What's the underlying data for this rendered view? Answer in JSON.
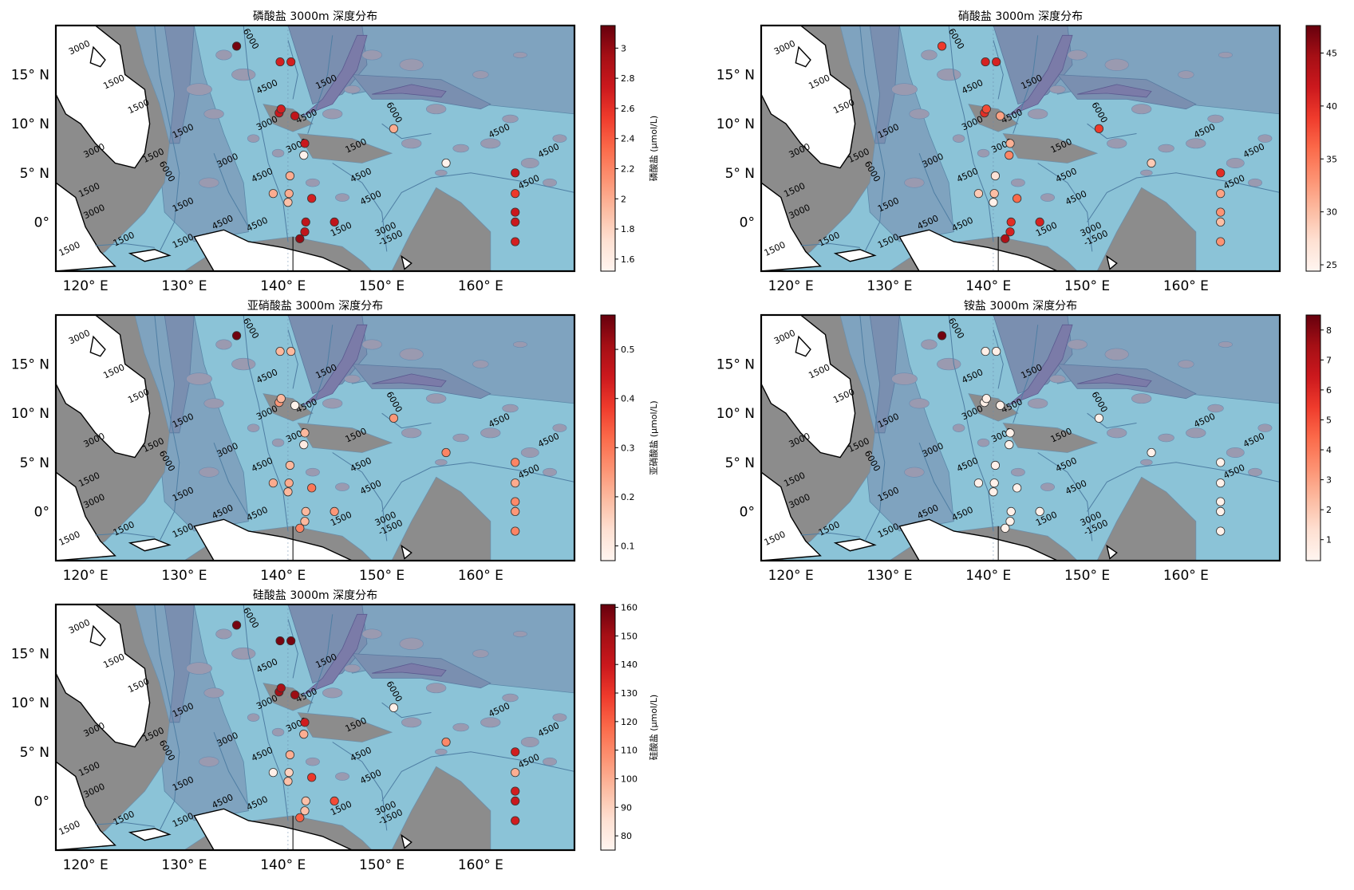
{
  "figure": {
    "x_ticks": [
      "120° E",
      "130° E",
      "140° E",
      "150° E",
      "160° E"
    ],
    "y_ticks": [
      "15° N",
      "10° N",
      "5° N",
      "0°"
    ]
  },
  "basemap": {
    "lon_range": [
      117,
      169.5
    ],
    "lat_range": [
      -5,
      20
    ],
    "contour_levels": [
      "1500",
      "3000",
      "4500",
      "6000",
      "-1500"
    ],
    "colors": {
      "land": "#ffffff",
      "shelf": "#8c8c8c",
      "shallow": "#8bc3d7",
      "mid": "#7fa3bf",
      "deep": "#7a8fb0",
      "trench": "#7b7ba8"
    }
  },
  "chart_data": [
    {
      "type": "scatter",
      "title": "磷酸盐 3000m 深度分布",
      "colorbar_label": "磷酸盐 (μmol/L)",
      "colorbar_ticks": [
        1.6,
        1.8,
        2.0,
        2.2,
        2.4,
        2.6,
        2.8,
        3.0
      ],
      "vmin": 1.52,
      "vmax": 3.15,
      "points": [
        {
          "lon": 135.3,
          "lat": 17.9,
          "value": 3.1
        },
        {
          "lon": 139.7,
          "lat": 16.3,
          "value": 2.7
        },
        {
          "lon": 140.8,
          "lat": 16.3,
          "value": 2.7
        },
        {
          "lon": 139.6,
          "lat": 11.1,
          "value": 2.75
        },
        {
          "lon": 139.8,
          "lat": 11.5,
          "value": 2.7
        },
        {
          "lon": 141.2,
          "lat": 10.8,
          "value": 2.8
        },
        {
          "lon": 142.2,
          "lat": 8.0,
          "value": 2.75
        },
        {
          "lon": 142.1,
          "lat": 6.8,
          "value": 1.55
        },
        {
          "lon": 151.2,
          "lat": 9.5,
          "value": 2.0
        },
        {
          "lon": 156.5,
          "lat": 6.0,
          "value": 1.55
        },
        {
          "lon": 163.5,
          "lat": 5.0,
          "value": 2.75
        },
        {
          "lon": 163.5,
          "lat": 2.9,
          "value": 2.55
        },
        {
          "lon": 163.5,
          "lat": 1.0,
          "value": 2.75
        },
        {
          "lon": 163.5,
          "lat": 0.0,
          "value": 2.75
        },
        {
          "lon": 163.5,
          "lat": -2.0,
          "value": 2.7
        },
        {
          "lon": 139.0,
          "lat": 2.9,
          "value": 2.0
        },
        {
          "lon": 140.7,
          "lat": 4.7,
          "value": 2.0
        },
        {
          "lon": 140.6,
          "lat": 2.9,
          "value": 2.0
        },
        {
          "lon": 140.5,
          "lat": 2.0,
          "value": 1.9
        },
        {
          "lon": 142.9,
          "lat": 2.4,
          "value": 2.7
        },
        {
          "lon": 142.3,
          "lat": 0.0,
          "value": 2.8
        },
        {
          "lon": 142.2,
          "lat": -1.0,
          "value": 2.8
        },
        {
          "lon": 141.7,
          "lat": -1.7,
          "value": 3.0
        },
        {
          "lon": 145.2,
          "lat": 0.0,
          "value": 2.8
        }
      ]
    },
    {
      "type": "scatter",
      "title": "硝酸盐 3000m 深度分布",
      "colorbar_label": "硝酸盐 (μmol/L)",
      "colorbar_ticks": [
        25,
        30,
        35,
        40,
        45
      ],
      "vmin": 24.4,
      "vmax": 47.6,
      "points": [
        {
          "lon": 135.3,
          "lat": 17.9,
          "value": 39
        },
        {
          "lon": 139.7,
          "lat": 16.3,
          "value": 41
        },
        {
          "lon": 140.8,
          "lat": 16.3,
          "value": 41
        },
        {
          "lon": 139.6,
          "lat": 11.1,
          "value": 40
        },
        {
          "lon": 139.8,
          "lat": 11.5,
          "value": 38
        },
        {
          "lon": 141.2,
          "lat": 10.8,
          "value": 32
        },
        {
          "lon": 142.2,
          "lat": 8.0,
          "value": 31
        },
        {
          "lon": 142.1,
          "lat": 6.8,
          "value": 34
        },
        {
          "lon": 151.2,
          "lat": 9.5,
          "value": 39
        },
        {
          "lon": 156.5,
          "lat": 6.0,
          "value": 29
        },
        {
          "lon": 163.5,
          "lat": 5.0,
          "value": 40
        },
        {
          "lon": 163.5,
          "lat": 2.9,
          "value": 32
        },
        {
          "lon": 163.5,
          "lat": 1.0,
          "value": 33
        },
        {
          "lon": 163.5,
          "lat": 0.0,
          "value": 30
        },
        {
          "lon": 163.5,
          "lat": -2.0,
          "value": 33
        },
        {
          "lon": 139.0,
          "lat": 2.9,
          "value": 29
        },
        {
          "lon": 140.7,
          "lat": 4.7,
          "value": 27
        },
        {
          "lon": 140.6,
          "lat": 2.9,
          "value": 30
        },
        {
          "lon": 140.5,
          "lat": 2.0,
          "value": 25
        },
        {
          "lon": 142.9,
          "lat": 2.4,
          "value": 36
        },
        {
          "lon": 142.3,
          "lat": 0.0,
          "value": 40
        },
        {
          "lon": 142.2,
          "lat": -1.0,
          "value": 41
        },
        {
          "lon": 141.7,
          "lat": -1.7,
          "value": 44
        },
        {
          "lon": 145.2,
          "lat": 0.0,
          "value": 41
        }
      ]
    },
    {
      "type": "scatter",
      "title": "亚硝酸盐 3000m 深度分布",
      "colorbar_label": "亚硝酸盐 (μmol/L)",
      "colorbar_ticks": [
        0.1,
        0.2,
        0.3,
        0.4,
        0.5
      ],
      "vmin": 0.07,
      "vmax": 0.57,
      "points": [
        {
          "lon": 135.3,
          "lat": 17.9,
          "value": 0.56
        },
        {
          "lon": 139.7,
          "lat": 16.3,
          "value": 0.2
        },
        {
          "lon": 140.8,
          "lat": 16.3,
          "value": 0.2
        },
        {
          "lon": 139.6,
          "lat": 11.1,
          "value": 0.25
        },
        {
          "lon": 139.8,
          "lat": 11.5,
          "value": 0.2
        },
        {
          "lon": 141.2,
          "lat": 10.8,
          "value": 0.08
        },
        {
          "lon": 142.2,
          "lat": 8.0,
          "value": 0.2
        },
        {
          "lon": 142.1,
          "lat": 6.8,
          "value": 0.1
        },
        {
          "lon": 151.2,
          "lat": 9.5,
          "value": 0.25
        },
        {
          "lon": 156.5,
          "lat": 6.0,
          "value": 0.28
        },
        {
          "lon": 163.5,
          "lat": 5.0,
          "value": 0.28
        },
        {
          "lon": 163.5,
          "lat": 2.9,
          "value": 0.22
        },
        {
          "lon": 163.5,
          "lat": 1.0,
          "value": 0.27
        },
        {
          "lon": 163.5,
          "lat": 0.0,
          "value": 0.25
        },
        {
          "lon": 163.5,
          "lat": -2.0,
          "value": 0.28
        },
        {
          "lon": 139.0,
          "lat": 2.9,
          "value": 0.22
        },
        {
          "lon": 140.7,
          "lat": 4.7,
          "value": 0.2
        },
        {
          "lon": 140.6,
          "lat": 2.9,
          "value": 0.22
        },
        {
          "lon": 140.5,
          "lat": 2.0,
          "value": 0.2
        },
        {
          "lon": 142.9,
          "lat": 2.4,
          "value": 0.3
        },
        {
          "lon": 142.3,
          "lat": 0.0,
          "value": 0.2
        },
        {
          "lon": 142.2,
          "lat": -1.0,
          "value": 0.2
        },
        {
          "lon": 141.7,
          "lat": -1.7,
          "value": 0.28
        },
        {
          "lon": 145.2,
          "lat": 0.0,
          "value": 0.25
        }
      ]
    },
    {
      "type": "scatter",
      "title": "铵盐 3000m 深度分布",
      "colorbar_label": "铵盐 (μmol/L)",
      "colorbar_ticks": [
        1,
        2,
        3,
        4,
        5,
        6,
        7,
        8
      ],
      "vmin": 0.3,
      "vmax": 8.5,
      "points": [
        {
          "lon": 135.3,
          "lat": 17.9,
          "value": 8.3
        },
        {
          "lon": 139.7,
          "lat": 16.3,
          "value": 0.6
        },
        {
          "lon": 140.8,
          "lat": 16.3,
          "value": 0.6
        },
        {
          "lon": 139.6,
          "lat": 11.1,
          "value": 0.6
        },
        {
          "lon": 139.8,
          "lat": 11.5,
          "value": 0.6
        },
        {
          "lon": 141.2,
          "lat": 10.8,
          "value": 0.6
        },
        {
          "lon": 142.2,
          "lat": 8.0,
          "value": 0.5
        },
        {
          "lon": 142.1,
          "lat": 6.8,
          "value": 0.5
        },
        {
          "lon": 151.2,
          "lat": 9.5,
          "value": 0.5
        },
        {
          "lon": 156.5,
          "lat": 6.0,
          "value": 0.5
        },
        {
          "lon": 163.5,
          "lat": 5.0,
          "value": 0.5
        },
        {
          "lon": 163.5,
          "lat": 2.9,
          "value": 0.5
        },
        {
          "lon": 163.5,
          "lat": 1.0,
          "value": 0.5
        },
        {
          "lon": 163.5,
          "lat": 0.0,
          "value": 0.5
        },
        {
          "lon": 163.5,
          "lat": -2.0,
          "value": 0.5
        },
        {
          "lon": 139.0,
          "lat": 2.9,
          "value": 0.5
        },
        {
          "lon": 140.7,
          "lat": 4.7,
          "value": 0.5
        },
        {
          "lon": 140.6,
          "lat": 2.9,
          "value": 0.5
        },
        {
          "lon": 140.5,
          "lat": 2.0,
          "value": 0.5
        },
        {
          "lon": 142.9,
          "lat": 2.4,
          "value": 0.5
        },
        {
          "lon": 142.3,
          "lat": 0.0,
          "value": 0.5
        },
        {
          "lon": 142.2,
          "lat": -1.0,
          "value": 0.5
        },
        {
          "lon": 141.7,
          "lat": -1.7,
          "value": 0.5
        },
        {
          "lon": 145.2,
          "lat": 0.0,
          "value": 0.5
        }
      ]
    },
    {
      "type": "scatter",
      "title": "硅酸盐 3000m 深度分布",
      "colorbar_label": "硅酸盐 (μmol/L)",
      "colorbar_ticks": [
        80,
        90,
        100,
        110,
        120,
        130,
        140,
        150,
        160
      ],
      "vmin": 75,
      "vmax": 161,
      "points": [
        {
          "lon": 135.3,
          "lat": 17.9,
          "value": 158
        },
        {
          "lon": 139.7,
          "lat": 16.3,
          "value": 158
        },
        {
          "lon": 140.8,
          "lat": 16.3,
          "value": 158
        },
        {
          "lon": 139.6,
          "lat": 11.1,
          "value": 150
        },
        {
          "lon": 139.8,
          "lat": 11.5,
          "value": 148
        },
        {
          "lon": 141.2,
          "lat": 10.8,
          "value": 152
        },
        {
          "lon": 142.2,
          "lat": 8.0,
          "value": 138
        },
        {
          "lon": 142.1,
          "lat": 6.8,
          "value": 100
        },
        {
          "lon": 151.2,
          "lat": 9.5,
          "value": 78
        },
        {
          "lon": 156.5,
          "lat": 6.0,
          "value": 110
        },
        {
          "lon": 163.5,
          "lat": 5.0,
          "value": 138
        },
        {
          "lon": 163.5,
          "lat": 2.9,
          "value": 100
        },
        {
          "lon": 163.5,
          "lat": 1.0,
          "value": 138
        },
        {
          "lon": 163.5,
          "lat": 0.0,
          "value": 140
        },
        {
          "lon": 163.5,
          "lat": -2.0,
          "value": 138
        },
        {
          "lon": 139.0,
          "lat": 2.9,
          "value": 78
        },
        {
          "lon": 140.7,
          "lat": 4.7,
          "value": 100
        },
        {
          "lon": 140.6,
          "lat": 2.9,
          "value": 90
        },
        {
          "lon": 140.5,
          "lat": 2.0,
          "value": 95
        },
        {
          "lon": 142.9,
          "lat": 2.4,
          "value": 130
        },
        {
          "lon": 142.3,
          "lat": 0.0,
          "value": 95
        },
        {
          "lon": 142.2,
          "lat": -1.0,
          "value": 95
        },
        {
          "lon": 141.7,
          "lat": -1.7,
          "value": 120
        },
        {
          "lon": 145.2,
          "lat": 0.0,
          "value": 125
        }
      ]
    }
  ]
}
